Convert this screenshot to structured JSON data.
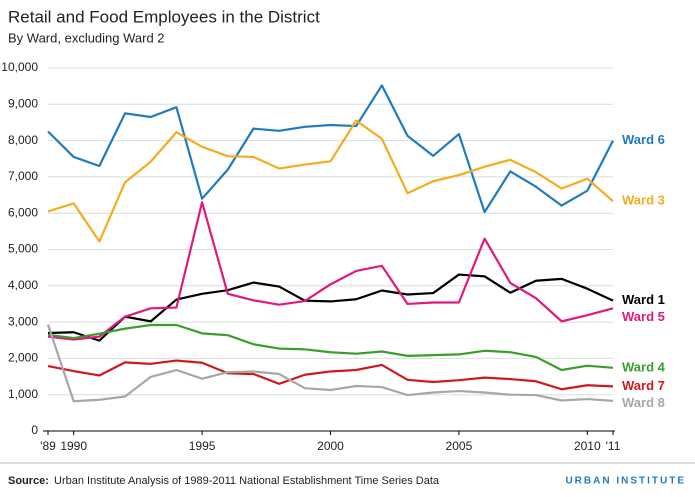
{
  "chart_data": {
    "type": "line",
    "title": "Retail and Food Employees in the District",
    "subtitle": "By Ward, excluding Ward 2",
    "source_label": "Source:",
    "source_text": "Urban Institute Analysis of 1989-2011 National Establishment Time Series Data",
    "logo": "URBAN INSTITUTE",
    "x": [
      1989,
      1990,
      1991,
      1992,
      1993,
      1994,
      1995,
      1996,
      1997,
      1998,
      1999,
      2000,
      2001,
      2002,
      2003,
      2004,
      2005,
      2006,
      2007,
      2008,
      2009,
      2010,
      2011
    ],
    "xlim": [
      1989,
      2011
    ],
    "xticks": [
      {
        "value": 1989,
        "label": "'89"
      },
      1990,
      1995,
      2000,
      2005,
      2010,
      {
        "value": 2011,
        "label": "'11"
      }
    ],
    "ylim": [
      0,
      10000
    ],
    "yticks": [
      0,
      {
        "value": 1000,
        "label": "1,000"
      },
      {
        "value": 2000,
        "label": "2,000"
      },
      {
        "value": 3000,
        "label": "3,000"
      },
      {
        "value": 4000,
        "label": "4,000"
      },
      {
        "value": 5000,
        "label": "5,000"
      },
      {
        "value": 6000,
        "label": "6,000"
      },
      {
        "value": 7000,
        "label": "7,000"
      },
      {
        "value": 8000,
        "label": "8,000"
      },
      {
        "value": 9000,
        "label": "9,000"
      },
      {
        "value": 10000,
        "label": "10,000"
      }
    ],
    "grid": true,
    "series": [
      {
        "name": "Ward 6",
        "color": "#1f7bbf",
        "values": [
          8250,
          7550,
          7300,
          8750,
          8650,
          8920,
          6400,
          7200,
          8330,
          8270,
          8380,
          8430,
          8400,
          9520,
          8130,
          7580,
          8180,
          6030,
          7150,
          6730,
          6210,
          6620,
          8000
        ]
      },
      {
        "name": "Ward 3",
        "color": "#f5ab1c",
        "values": [
          6050,
          6270,
          5220,
          6850,
          7420,
          8230,
          7830,
          7570,
          7550,
          7230,
          7340,
          7430,
          8550,
          8050,
          6550,
          6880,
          7050,
          7280,
          7470,
          7130,
          6680,
          6950,
          6330
        ]
      },
      {
        "name": "Ward 1",
        "color": "#000000",
        "values": [
          2700,
          2720,
          2490,
          3150,
          3020,
          3620,
          3780,
          3880,
          4090,
          3980,
          3590,
          3570,
          3630,
          3870,
          3760,
          3800,
          4310,
          4260,
          3810,
          4140,
          4190,
          3920,
          3590
        ]
      },
      {
        "name": "Ward 5",
        "color": "#e0197d",
        "values": [
          2600,
          2520,
          2600,
          3150,
          3380,
          3400,
          6300,
          3780,
          3600,
          3480,
          3580,
          4040,
          4410,
          4550,
          3500,
          3540,
          3540,
          5300,
          4080,
          3660,
          3020,
          3190,
          3380
        ]
      },
      {
        "name": "Ward 4",
        "color": "#3a9e2a",
        "values": [
          2650,
          2560,
          2680,
          2820,
          2920,
          2920,
          2690,
          2640,
          2390,
          2270,
          2250,
          2170,
          2130,
          2190,
          2070,
          2090,
          2110,
          2210,
          2170,
          2040,
          1680,
          1800,
          1740
        ]
      },
      {
        "name": "Ward 7",
        "color": "#d0181f",
        "values": [
          1790,
          1650,
          1530,
          1890,
          1850,
          1940,
          1880,
          1590,
          1570,
          1300,
          1550,
          1640,
          1680,
          1820,
          1410,
          1350,
          1400,
          1470,
          1430,
          1370,
          1150,
          1260,
          1230
        ]
      },
      {
        "name": "Ward 8",
        "color": "#a7a7a7",
        "values": [
          2930,
          820,
          860,
          950,
          1490,
          1680,
          1440,
          1620,
          1640,
          1570,
          1180,
          1130,
          1240,
          1210,
          990,
          1060,
          1100,
          1060,
          1000,
          990,
          840,
          880,
          830
        ]
      }
    ]
  }
}
